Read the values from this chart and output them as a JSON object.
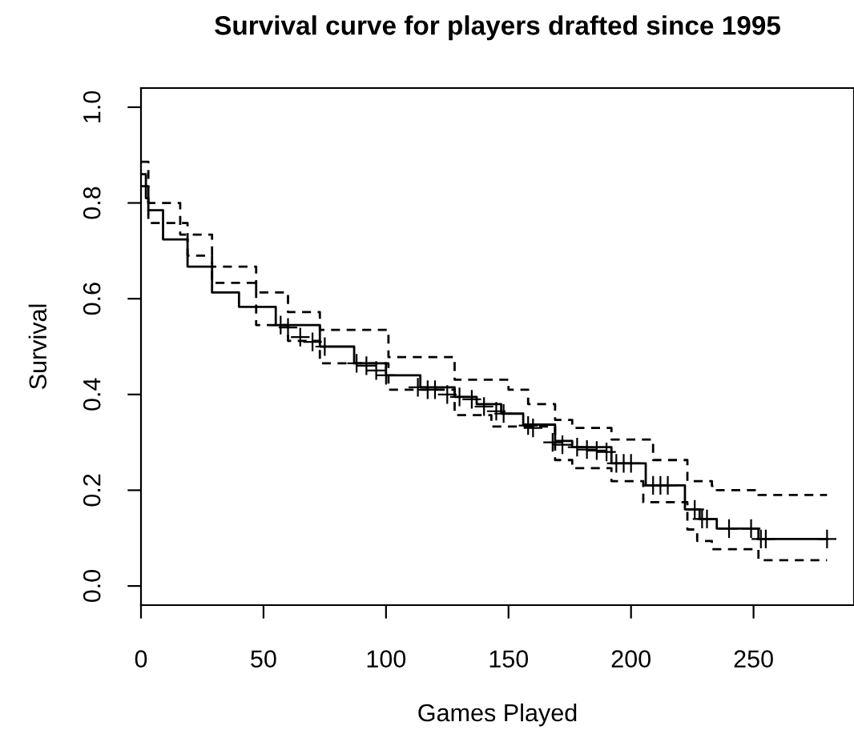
{
  "chart_data": {
    "type": "step",
    "title": "Survival curve for players drafted since 1995",
    "xlabel": "Games Played",
    "ylabel": "Survival",
    "xlim": [
      0,
      291
    ],
    "ylim": [
      -0.04,
      1.04
    ],
    "xticks": [
      0,
      50,
      100,
      150,
      200,
      250
    ],
    "yticks": [
      {
        "value": 0,
        "label": "0.0"
      },
      {
        "value": 0.2,
        "label": "0.2"
      },
      {
        "value": 0.4,
        "label": "0.4"
      },
      {
        "value": 0.6,
        "label": "0.6"
      },
      {
        "value": 0.8,
        "label": "0.8"
      },
      {
        "value": 1,
        "label": "1.0"
      }
    ],
    "grid": false,
    "series": [
      {
        "color": "#000000",
        "line_style": "solid",
        "x": [
          0,
          2,
          3,
          9,
          19,
          29,
          40,
          55,
          73,
          87,
          100,
          114,
          128,
          137,
          147,
          156,
          169,
          176,
          192,
          206,
          222,
          228,
          235,
          252,
          280
        ],
        "values": [
          0.86,
          0.81,
          0.785,
          0.724,
          0.667,
          0.613,
          0.583,
          0.545,
          0.5,
          0.465,
          0.44,
          0.415,
          0.395,
          0.38,
          0.36,
          0.337,
          0.303,
          0.29,
          0.256,
          0.21,
          0.16,
          0.14,
          0.12,
          0.098,
          0.098
        ]
      },
      {
        "color": "#000000",
        "line_style": "dashed",
        "x": [
          0,
          3,
          16,
          29,
          47,
          60,
          73,
          101,
          128,
          150,
          158,
          169,
          176,
          192,
          209,
          223,
          233,
          235,
          252,
          280
        ],
        "values": [
          0.886,
          0.8,
          0.734,
          0.667,
          0.613,
          0.572,
          0.535,
          0.478,
          0.431,
          0.41,
          0.38,
          0.347,
          0.33,
          0.306,
          0.263,
          0.219,
          0.209,
          0.2,
          0.19,
          0.19
        ]
      },
      {
        "color": "#000000",
        "line_style": "dashed",
        "x": [
          0,
          3,
          19,
          29,
          47,
          60,
          73,
          101,
          128,
          143,
          169,
          176,
          192,
          205,
          223,
          227,
          233,
          252,
          280
        ],
        "values": [
          0.835,
          0.758,
          0.69,
          0.633,
          0.545,
          0.512,
          0.465,
          0.41,
          0.357,
          0.333,
          0.263,
          0.246,
          0.219,
          0.175,
          0.118,
          0.094,
          0.077,
          0.054,
          0.054
        ]
      },
      {
        "type": "scatter",
        "color": "#000000",
        "marker": "cross",
        "x": [
          57,
          60,
          65,
          70,
          75,
          88,
          92,
          96,
          100,
          113,
          117,
          120,
          125,
          130,
          135,
          140,
          145,
          148,
          158,
          160,
          168,
          172,
          178,
          182,
          186,
          190,
          194,
          197,
          200,
          209,
          212,
          215,
          226,
          229,
          231,
          240,
          249,
          253,
          255,
          280
        ],
        "values": [
          0.545,
          0.54,
          0.52,
          0.51,
          0.5,
          0.465,
          0.46,
          0.45,
          0.44,
          0.415,
          0.41,
          0.41,
          0.4,
          0.395,
          0.39,
          0.375,
          0.365,
          0.36,
          0.335,
          0.33,
          0.3,
          0.295,
          0.29,
          0.285,
          0.283,
          0.28,
          0.256,
          0.256,
          0.256,
          0.21,
          0.21,
          0.21,
          0.16,
          0.14,
          0.14,
          0.12,
          0.12,
          0.098,
          0.098,
          0.098
        ]
      }
    ]
  }
}
